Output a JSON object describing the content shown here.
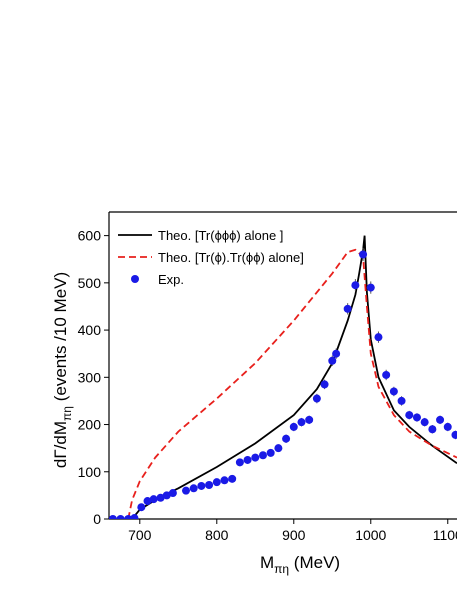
{
  "chart_data": {
    "type": "line",
    "xlabel": "M",
    "xlabel_sub": "πη",
    "xlabel_rest": " (MeV)",
    "ylabel": "dΓ/dM",
    "ylabel_sub": "πη",
    "ylabel_rest": "  (events /10 MeV)",
    "xlim": [
      660,
      1112
    ],
    "xticks": [
      700,
      800,
      900,
      1000,
      1100
    ],
    "ylim": [
      0,
      650
    ],
    "yticks": [
      0,
      100,
      200,
      300,
      400,
      500,
      600
    ],
    "legend": "upper left",
    "series": [
      {
        "name": "Theo. [Tr(ϕϕϕ) alone ]",
        "color": "#000000",
        "style": "solid",
        "mark": "line",
        "x": [
          690,
          700,
          725,
          750,
          800,
          850,
          900,
          930,
          950,
          970,
          980,
          985,
          990,
          992,
          995,
          1000,
          1010,
          1030,
          1050,
          1080,
          1112
        ],
        "values": [
          0,
          20,
          45,
          65,
          110,
          160,
          220,
          275,
          330,
          420,
          475,
          520,
          570,
          600,
          480,
          380,
          300,
          230,
          195,
          155,
          118
        ]
      },
      {
        "name": "Theo. [Tr(ϕ).Tr(ϕϕ) alone]",
        "color": "#e8201c",
        "style": "dashed",
        "mark": "line",
        "x": [
          685,
          690,
          700,
          720,
          750,
          800,
          850,
          900,
          950,
          970,
          980,
          990,
          995,
          1000,
          1010,
          1030,
          1050,
          1080,
          1112
        ],
        "values": [
          0,
          40,
          80,
          130,
          185,
          255,
          330,
          420,
          520,
          565,
          570,
          555,
          450,
          350,
          280,
          220,
          185,
          155,
          130
        ]
      },
      {
        "name": "Exp.",
        "color": "#1a1ae6",
        "style": "none",
        "mark": "point",
        "x": [
          665,
          675,
          685,
          693,
          702,
          710,
          718,
          727,
          735,
          743,
          760,
          770,
          780,
          790,
          800,
          810,
          820,
          830,
          840,
          850,
          860,
          870,
          880,
          890,
          900,
          910,
          920,
          930,
          940,
          950,
          955,
          970,
          980,
          990,
          1000,
          1010,
          1020,
          1030,
          1040,
          1050,
          1060,
          1070,
          1080,
          1090,
          1100,
          1110
        ],
        "values": [
          0,
          0,
          0,
          2,
          25,
          38,
          42,
          45,
          50,
          55,
          60,
          65,
          70,
          72,
          78,
          82,
          85,
          120,
          125,
          130,
          135,
          140,
          150,
          170,
          195,
          205,
          210,
          255,
          285,
          335,
          350,
          445,
          495,
          560,
          490,
          385,
          305,
          270,
          250,
          220,
          215,
          205,
          190,
          210,
          195,
          178
        ],
        "errors": [
          2,
          2,
          2,
          3,
          5,
          5,
          5,
          5,
          5,
          5,
          6,
          6,
          7,
          7,
          7,
          7,
          7,
          8,
          8,
          8,
          8,
          8,
          8,
          9,
          9,
          9,
          9,
          10,
          10,
          11,
          11,
          12,
          13,
          14,
          13,
          12,
          11,
          10,
          10,
          9,
          9,
          9,
          9,
          9,
          9,
          9
        ]
      }
    ]
  }
}
